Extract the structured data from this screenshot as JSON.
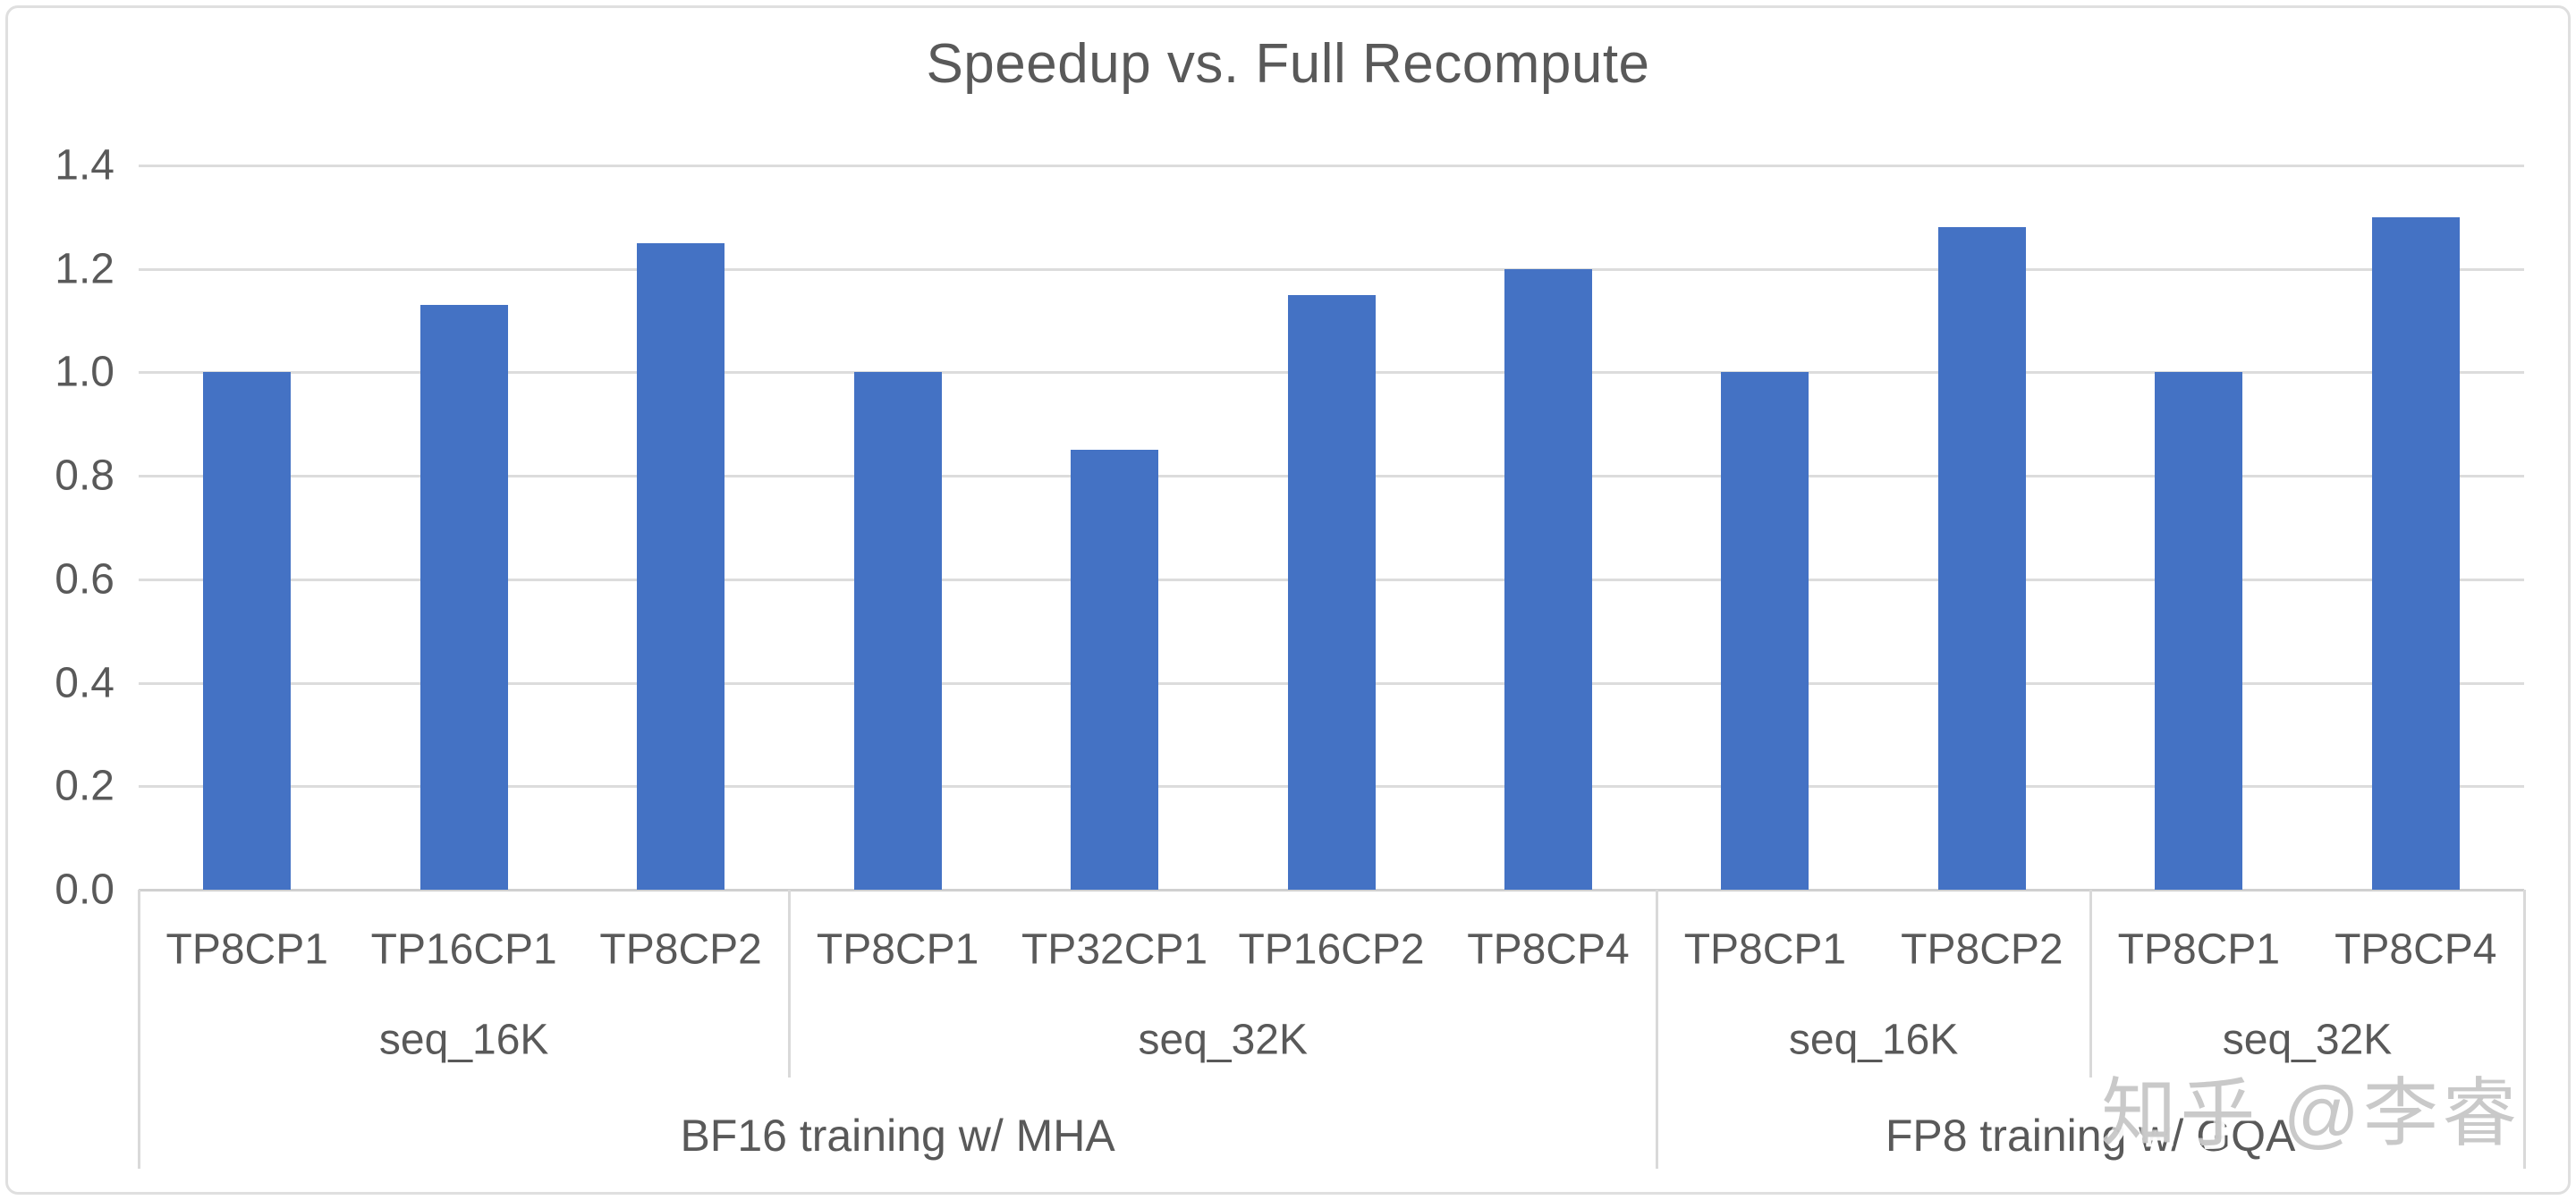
{
  "title": "Speedup vs. Full Recompute",
  "watermark": "知乎 @李睿",
  "colors": {
    "bar": "#4472C4",
    "gridline": "#DCDCDC",
    "axis_line": "#D0D0D0",
    "divider": "#D9D9D9",
    "text": "#595959",
    "watermark_text": "#C6C6C6",
    "background": "#FFFFFF",
    "frame_border": "#DFDFDF"
  },
  "chart_data": {
    "type": "bar",
    "title": "Speedup vs. Full Recompute",
    "xlabel": "",
    "ylabel": "",
    "ylim": [
      0,
      1.4
    ],
    "ytick_step": 0.2,
    "ytick_labels": [
      "0.0",
      "0.2",
      "0.4",
      "0.6",
      "0.8",
      "1.0",
      "1.2",
      "1.4"
    ],
    "grid": true,
    "legend": false,
    "bar_color": "#4472C4",
    "categories": [
      "TP8CP1",
      "TP16CP1",
      "TP8CP2",
      "TP8CP1",
      "TP32CP1",
      "TP16CP2",
      "TP8CP4",
      "TP8CP1",
      "TP8CP2",
      "TP8CP1",
      "TP8CP4"
    ],
    "values": [
      1.0,
      1.13,
      1.25,
      1.0,
      0.85,
      1.15,
      1.2,
      1.0,
      1.28,
      1.0,
      1.3
    ],
    "groups": [
      {
        "label": "BF16 training w/ MHA",
        "subgroups": [
          {
            "label": "seq_16K",
            "bars": [
              {
                "label": "TP8CP1",
                "value": 1.0
              },
              {
                "label": "TP16CP1",
                "value": 1.13
              },
              {
                "label": "TP8CP2",
                "value": 1.25
              }
            ]
          },
          {
            "label": "seq_32K",
            "bars": [
              {
                "label": "TP8CP1",
                "value": 1.0
              },
              {
                "label": "TP32CP1",
                "value": 0.85
              },
              {
                "label": "TP16CP2",
                "value": 1.15
              },
              {
                "label": "TP8CP4",
                "value": 1.2
              }
            ]
          }
        ]
      },
      {
        "label": "FP8 training w/ GQA",
        "subgroups": [
          {
            "label": "seq_16K",
            "bars": [
              {
                "label": "TP8CP1",
                "value": 1.0
              },
              {
                "label": "TP8CP2",
                "value": 1.28
              }
            ]
          },
          {
            "label": "seq_32K",
            "bars": [
              {
                "label": "TP8CP1",
                "value": 1.0
              },
              {
                "label": "TP8CP4",
                "value": 1.3
              }
            ]
          }
        ]
      }
    ]
  }
}
